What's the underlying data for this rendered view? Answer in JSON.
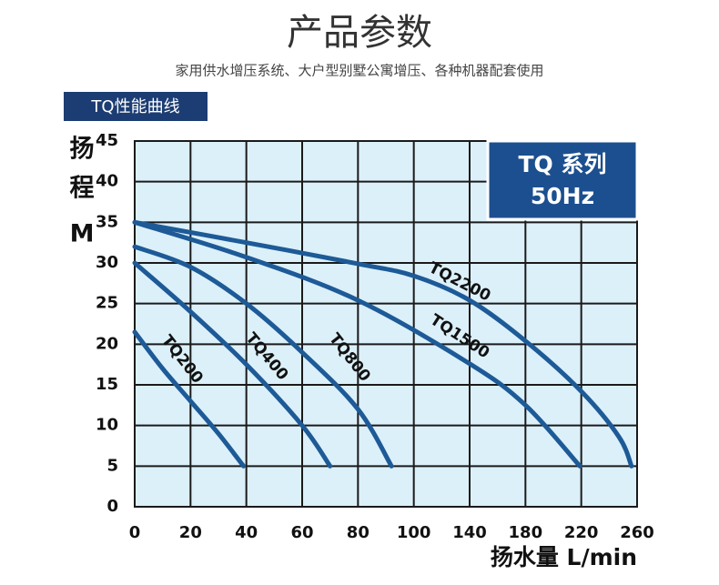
{
  "title": "产品参数",
  "subtitle": "家用供水增压系统、大户型别墅公寓增压、各种机器配套使用",
  "section_label": "TQ性能曲线",
  "chart_data": {
    "type": "line",
    "ylabel_lines": [
      "扬",
      "程",
      "M"
    ],
    "xlabel": "扬水量 L/min",
    "box": {
      "title": "TQ 系列",
      "subtitle": "50Hz"
    },
    "xlim": [
      0,
      260
    ],
    "xticks": [
      0,
      20,
      40,
      60,
      80,
      100,
      140,
      180,
      220,
      260
    ],
    "ylim": [
      0,
      45
    ],
    "yticks": [
      0,
      5,
      10,
      15,
      20,
      25,
      30,
      35,
      40,
      45
    ],
    "grid": true,
    "series": [
      {
        "name": "TQ200",
        "color": "#1d5a97",
        "x": [
          0,
          10,
          20,
          30,
          39
        ],
        "values": [
          21.5,
          17,
          13,
          9,
          5
        ]
      },
      {
        "name": "TQ400",
        "color": "#1d5a97",
        "x": [
          0,
          20,
          40,
          60,
          70
        ],
        "values": [
          30,
          24,
          17.5,
          10,
          5
        ]
      },
      {
        "name": "TQ800",
        "color": "#1d5a97",
        "x": [
          0,
          20,
          40,
          60,
          80,
          92
        ],
        "values": [
          32,
          29.5,
          25,
          19,
          12,
          5
        ]
      },
      {
        "name": "TQ1500",
        "color": "#1d5a97",
        "x": [
          0,
          40,
          80,
          140,
          180,
          219
        ],
        "values": [
          35,
          30.7,
          25.4,
          17.6,
          12.5,
          5
        ]
      },
      {
        "name": "TQ2200",
        "color": "#1d5a97",
        "x": [
          0,
          40,
          80,
          100,
          140,
          180,
          220,
          247,
          256
        ],
        "values": [
          35,
          32.5,
          29.9,
          28.4,
          25.4,
          20.4,
          14.2,
          8.6,
          5
        ]
      }
    ]
  }
}
